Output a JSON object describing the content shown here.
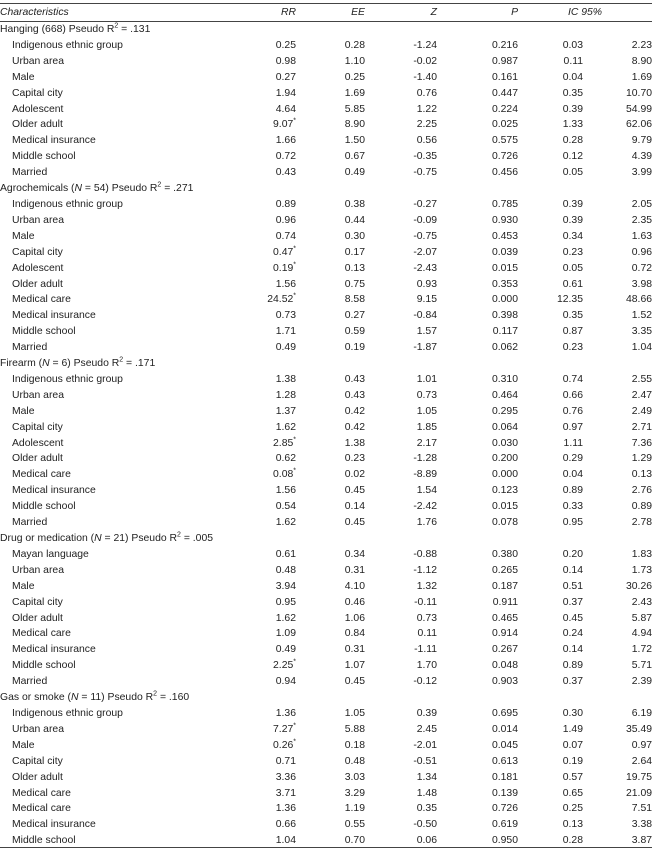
{
  "headers": [
    "Characteristics",
    "RR",
    "EE",
    "Z",
    "P",
    "IC 95%"
  ],
  "groups": [
    {
      "title_parts": [
        "Hanging (668) Pseudo R",
        "2",
        " = .131"
      ],
      "rows": [
        [
          "Indigenous ethnic group",
          "0.25",
          "",
          "0.28",
          "-1.24",
          "0.216",
          "0.03",
          "2.23"
        ],
        [
          "Urban area",
          "0.98",
          "",
          "1.10",
          "-0.02",
          "0.987",
          "0.11",
          "8.90"
        ],
        [
          "Male",
          "0.27",
          "",
          "0.25",
          "-1.40",
          "0.161",
          "0.04",
          "1.69"
        ],
        [
          "Capital city",
          "1.94",
          "",
          "1.69",
          "0.76",
          "0.447",
          "0.35",
          "10.70"
        ],
        [
          "Adolescent",
          "4.64",
          "",
          "5.85",
          "1.22",
          "0.224",
          "0.39",
          "54.99"
        ],
        [
          "Older adult",
          "9.07",
          "*",
          "8.90",
          "2.25",
          "0.025",
          "1.33",
          "62.06"
        ],
        [
          "Medical insurance",
          "1.66",
          "",
          "1.50",
          "0.56",
          "0.575",
          "0.28",
          "9.79"
        ],
        [
          "Middle school",
          "0.72",
          "",
          "0.67",
          "-0.35",
          "0.726",
          "0.12",
          "4.39"
        ],
        [
          "Married",
          "0.43",
          "",
          "0.49",
          "-0.75",
          "0.456",
          "0.05",
          "3.99"
        ]
      ]
    },
    {
      "title_parts": [
        "Agrochemicals (",
        "N",
        " = 54) Pseudo R",
        "2",
        " = .271"
      ],
      "rows": [
        [
          "Indigenous ethnic group",
          "0.89",
          "",
          "0.38",
          "-0.27",
          "0.785",
          "0.39",
          "2.05"
        ],
        [
          "Urban area",
          "0.96",
          "",
          "0.44",
          "-0.09",
          "0.930",
          "0.39",
          "2.35"
        ],
        [
          "Male",
          "0.74",
          "",
          "0.30",
          "-0.75",
          "0.453",
          "0.34",
          "1.63"
        ],
        [
          "Capital city",
          "0.47",
          "*",
          "0.17",
          "-2.07",
          "0.039",
          "0.23",
          "0.96"
        ],
        [
          "Adolescent",
          "0.19",
          "*",
          "0.13",
          "-2.43",
          "0.015",
          "0.05",
          "0.72"
        ],
        [
          "Older adult",
          "1.56",
          "",
          "0.75",
          "0.93",
          "0.353",
          "0.61",
          "3.98"
        ],
        [
          "Medical care",
          "24.52",
          "*",
          "8.58",
          "9.15",
          "0.000",
          "12.35",
          "48.66"
        ],
        [
          "Medical insurance",
          "0.73",
          "",
          "0.27",
          "-0.84",
          "0.398",
          "0.35",
          "1.52"
        ],
        [
          "Middle school",
          "1.71",
          "",
          "0.59",
          "1.57",
          "0.117",
          "0.87",
          "3.35"
        ],
        [
          "Married",
          "0.49",
          "",
          "0.19",
          "-1.87",
          "0.062",
          "0.23",
          "1.04"
        ]
      ]
    },
    {
      "title_parts": [
        "Firearm (",
        "N",
        " = 6) Pseudo R",
        "2",
        " = .171"
      ],
      "rows": [
        [
          "Indigenous ethnic group",
          "1.38",
          "",
          "0.43",
          "1.01",
          "0.310",
          "0.74",
          "2.55"
        ],
        [
          "Urban area",
          "1.28",
          "",
          "0.43",
          "0.73",
          "0.464",
          "0.66",
          "2.47"
        ],
        [
          "Male",
          "1.37",
          "",
          "0.42",
          "1.05",
          "0.295",
          "0.76",
          "2.49"
        ],
        [
          "Capital city",
          "1.62",
          "",
          "0.42",
          "1.85",
          "0.064",
          "0.97",
          "2.71"
        ],
        [
          "Adolescent",
          "2.85",
          "*",
          "1.38",
          "2.17",
          "0.030",
          "1.11",
          "7.36"
        ],
        [
          "Older adult",
          "0.62",
          "",
          "0.23",
          "-1.28",
          "0.200",
          "0.29",
          "1.29"
        ],
        [
          "Medical care",
          "0.08",
          "*",
          "0.02",
          "-8.89",
          "0.000",
          "0.04",
          "0.13"
        ],
        [
          "Medical insurance",
          "1.56",
          "",
          "0.45",
          "1.54",
          "0.123",
          "0.89",
          "2.76"
        ],
        [
          "Middle school",
          "0.54",
          "",
          "0.14",
          "-2.42",
          "0.015",
          "0.33",
          "0.89"
        ],
        [
          "Married",
          "1.62",
          "",
          "0.45",
          "1.76",
          "0.078",
          "0.95",
          "2.78"
        ]
      ]
    },
    {
      "title_parts": [
        "Drug or medication (",
        "N",
        " = 21) Pseudo R",
        "2",
        " = .005"
      ],
      "rows": [
        [
          "Mayan language",
          "0.61",
          "",
          "0.34",
          "-0.88",
          "0.380",
          "0.20",
          "1.83"
        ],
        [
          "Urban area",
          "0.48",
          "",
          "0.31",
          "-1.12",
          "0.265",
          "0.14",
          "1.73"
        ],
        [
          "Male",
          "3.94",
          "",
          "4.10",
          "1.32",
          "0.187",
          "0.51",
          "30.26"
        ],
        [
          "Capital city",
          "0.95",
          "",
          "0.46",
          "-0.11",
          "0.911",
          "0.37",
          "2.43"
        ],
        [
          "Older adult",
          "1.62",
          "",
          "1.06",
          "0.73",
          "0.465",
          "0.45",
          "5.87"
        ],
        [
          "Medical care",
          "1.09",
          "",
          "0.84",
          "0.11",
          "0.914",
          "0.24",
          "4.94"
        ],
        [
          "Medical insurance",
          "0.49",
          "",
          "0.31",
          "-1.11",
          "0.267",
          "0.14",
          "1.72"
        ],
        [
          "Middle school",
          "2.25",
          "*",
          "1.07",
          "1.70",
          "0.048",
          "0.89",
          "5.71"
        ],
        [
          "Married",
          "0.94",
          "",
          "0.45",
          "-0.12",
          "0.903",
          "0.37",
          "2.39"
        ]
      ]
    },
    {
      "title_parts": [
        "Gas or smoke (",
        "N",
        " = 11) Pseudo R",
        "2",
        " = .160"
      ],
      "rows": [
        [
          "Indigenous ethnic group",
          "1.36",
          "",
          "1.05",
          "0.39",
          "0.695",
          "0.30",
          "6.19"
        ],
        [
          "Urban area",
          "7.27",
          "*",
          "5.88",
          "2.45",
          "0.014",
          "1.49",
          "35.49"
        ],
        [
          "Male",
          "0.26",
          "*",
          "0.18",
          "-2.01",
          "0.045",
          "0.07",
          "0.97"
        ],
        [
          "Capital city",
          "0.71",
          "",
          "0.48",
          "-0.51",
          "0.613",
          "0.19",
          "2.64"
        ],
        [
          "Older adult",
          "3.36",
          "",
          "3.03",
          "1.34",
          "0.181",
          "0.57",
          "19.75"
        ],
        [
          "Medical care",
          "3.71",
          "",
          "3.29",
          "1.48",
          "0.139",
          "0.65",
          "21.09"
        ],
        [
          "Medical care",
          "1.36",
          "",
          "1.19",
          "0.35",
          "0.726",
          "0.25",
          "7.51"
        ],
        [
          "Medical insurance",
          "0.66",
          "",
          "0.55",
          "-0.50",
          "0.619",
          "0.13",
          "3.38"
        ],
        [
          "Middle school",
          "1.04",
          "",
          "0.70",
          "0.06",
          "0.950",
          "0.28",
          "3.87"
        ]
      ]
    }
  ]
}
